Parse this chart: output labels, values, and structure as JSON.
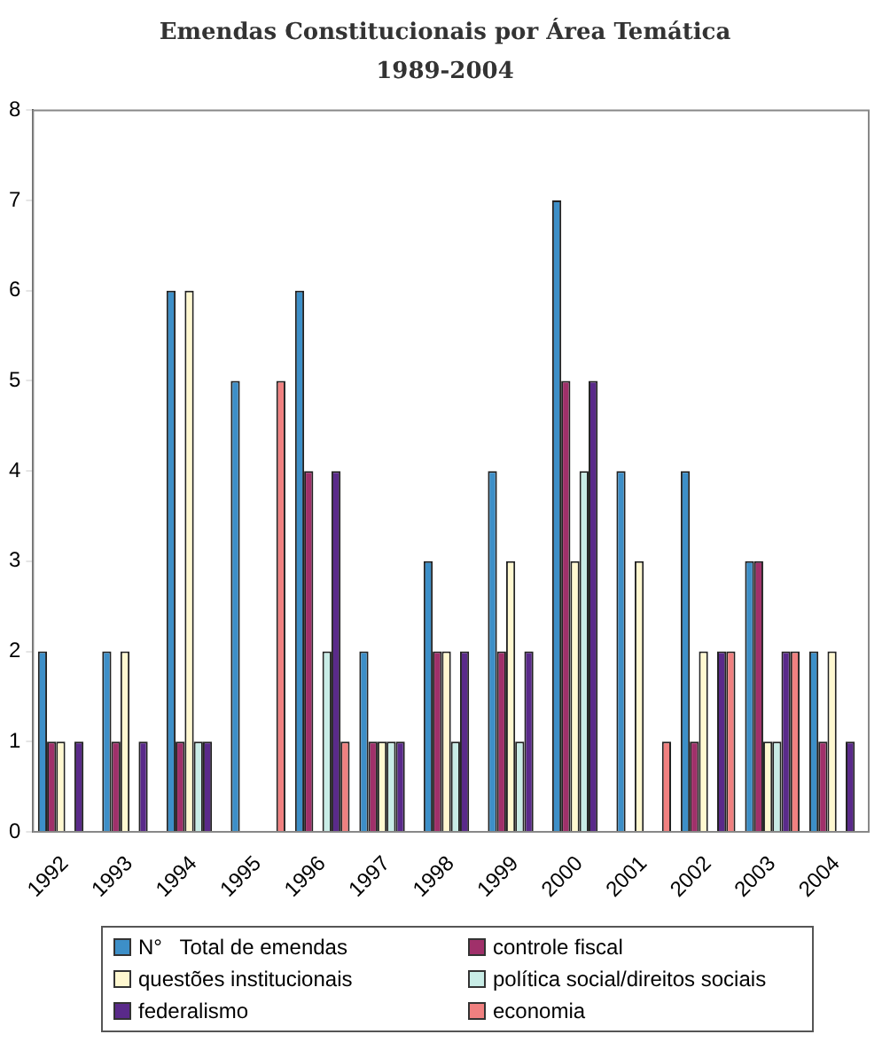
{
  "chart_data": {
    "type": "bar",
    "title": "Emendas Constitucionais por Área Temática",
    "subtitle": "1989-2004",
    "categories": [
      "1992",
      "1993",
      "1994",
      "1995",
      "1996",
      "1997",
      "1998",
      "1999",
      "2000",
      "2001",
      "2002",
      "2003",
      "2004"
    ],
    "series": [
      {
        "name": "N°   Total de emendas",
        "color": "#3d8fc8",
        "values": [
          2,
          2,
          6,
          5,
          6,
          2,
          3,
          4,
          7,
          4,
          4,
          3,
          2
        ]
      },
      {
        "name": "controle fiscal",
        "color": "#a0306a",
        "values": [
          1,
          1,
          1,
          0,
          4,
          1,
          2,
          2,
          5,
          0,
          1,
          3,
          1
        ]
      },
      {
        "name": "questões institucionais",
        "color": "#fff8d0",
        "values": [
          1,
          2,
          6,
          0,
          0,
          1,
          2,
          3,
          3,
          3,
          2,
          1,
          2
        ]
      },
      {
        "name": "política social/direitos sociais",
        "color": "#c8ece6",
        "values": [
          0,
          0,
          1,
          0,
          2,
          1,
          1,
          1,
          4,
          0,
          0,
          1,
          0
        ]
      },
      {
        "name": "federalismo",
        "color": "#5a2a8a",
        "values": [
          1,
          1,
          1,
          0,
          4,
          1,
          2,
          2,
          5,
          0,
          2,
          2,
          1
        ]
      },
      {
        "name": "economia",
        "color": "#f08080",
        "values": [
          0,
          0,
          0,
          5,
          1,
          0,
          0,
          0,
          0,
          1,
          2,
          2,
          0
        ]
      }
    ],
    "ylim": [
      0,
      8
    ],
    "yticks": [
      0,
      1,
      2,
      3,
      4,
      5,
      6,
      7,
      8
    ],
    "grid": false,
    "legend": "bottom"
  }
}
